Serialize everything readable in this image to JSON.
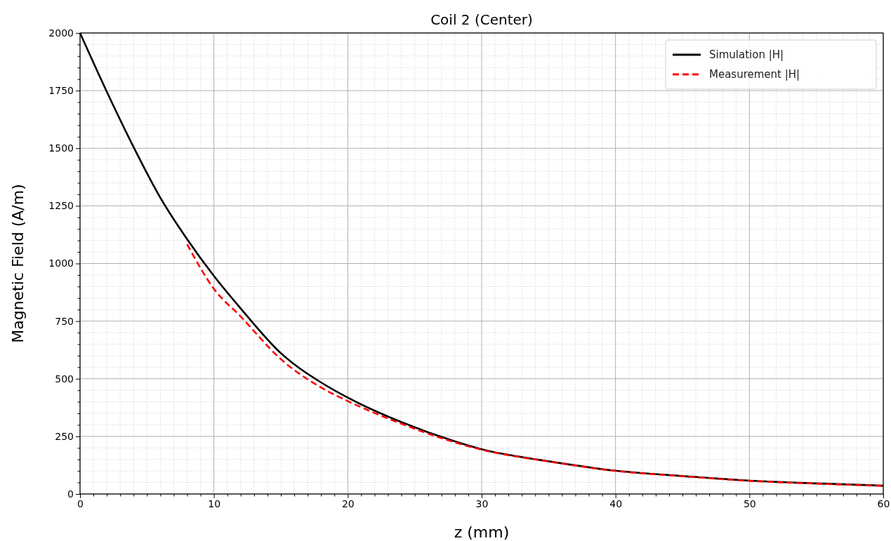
{
  "chart_data": {
    "type": "line",
    "title": "Coil 2 (Center)",
    "xlabel": "z (mm)",
    "ylabel": "Magnetic Field (A/m)",
    "xlim": [
      0,
      60
    ],
    "ylim": [
      0,
      2000
    ],
    "xticks": [
      0,
      {
        "value": 1,
        "label": null
      },
      {
        "value": 2,
        "label": null
      },
      {
        "value": 3,
        "label": null
      },
      {
        "value": 4,
        "label": null
      },
      {
        "value": 5,
        "label": null
      },
      {
        "value": 6,
        "label": null
      },
      {
        "value": 7,
        "label": null
      },
      {
        "value": 8,
        "label": null
      },
      {
        "value": 9,
        "label": null
      },
      10,
      {
        "value": 11,
        "label": null
      },
      {
        "value": 12,
        "label": null
      },
      {
        "value": 13,
        "label": null
      },
      {
        "value": 14,
        "label": null
      },
      {
        "value": 15,
        "label": null
      },
      {
        "value": 16,
        "label": null
      },
      {
        "value": 17,
        "label": null
      },
      {
        "value": 18,
        "label": null
      },
      {
        "value": 19,
        "label": null
      },
      20,
      {
        "value": 21,
        "label": null
      },
      {
        "value": 22,
        "label": null
      },
      {
        "value": 23,
        "label": null
      },
      {
        "value": 24,
        "label": null
      },
      {
        "value": 25,
        "label": null
      },
      {
        "value": 26,
        "label": null
      },
      {
        "value": 27,
        "label": null
      },
      {
        "value": 28,
        "label": null
      },
      {
        "value": 29,
        "label": null
      },
      30,
      {
        "value": 31,
        "label": null
      },
      {
        "value": 32,
        "label": null
      },
      {
        "value": 33,
        "label": null
      },
      {
        "value": 34,
        "label": null
      },
      {
        "value": 35,
        "label": null
      },
      {
        "value": 36,
        "label": null
      },
      {
        "value": 37,
        "label": null
      },
      {
        "value": 38,
        "label": null
      },
      {
        "value": 39,
        "label": null
      },
      40,
      {
        "value": 41,
        "label": null
      },
      {
        "value": 42,
        "label": null
      },
      {
        "value": 43,
        "label": null
      },
      {
        "value": 44,
        "label": null
      },
      {
        "value": 45,
        "label": null
      },
      {
        "value": 46,
        "label": null
      },
      {
        "value": 47,
        "label": null
      },
      {
        "value": 48,
        "label": null
      },
      {
        "value": 49,
        "label": null
      },
      50,
      {
        "value": 51,
        "label": null
      },
      {
        "value": 52,
        "label": null
      },
      {
        "value": 53,
        "label": null
      },
      {
        "value": 54,
        "label": null
      },
      {
        "value": 55,
        "label": null
      },
      {
        "value": 56,
        "label": null
      },
      {
        "value": 57,
        "label": null
      },
      {
        "value": 58,
        "label": null
      },
      {
        "value": 59,
        "label": null
      },
      60
    ],
    "yticks": [
      0,
      {
        "value": 50,
        "label": null
      },
      {
        "value": 100,
        "label": null
      },
      {
        "value": 150,
        "label": null
      },
      {
        "value": 200,
        "label": null
      },
      250,
      {
        "value": 300,
        "label": null
      },
      {
        "value": 350,
        "label": null
      },
      {
        "value": 400,
        "label": null
      },
      {
        "value": 450,
        "label": null
      },
      500,
      {
        "value": 550,
        "label": null
      },
      {
        "value": 600,
        "label": null
      },
      {
        "value": 650,
        "label": null
      },
      {
        "value": 700,
        "label": null
      },
      750,
      {
        "value": 800,
        "label": null
      },
      {
        "value": 850,
        "label": null
      },
      {
        "value": 900,
        "label": null
      },
      {
        "value": 950,
        "label": null
      },
      1000,
      {
        "value": 1050,
        "label": null
      },
      {
        "value": 1100,
        "label": null
      },
      {
        "value": 1150,
        "label": null
      },
      {
        "value": 1200,
        "label": null
      },
      1250,
      {
        "value": 1300,
        "label": null
      },
      {
        "value": 1350,
        "label": null
      },
      {
        "value": 1400,
        "label": null
      },
      {
        "value": 1450,
        "label": null
      },
      1500,
      {
        "value": 1550,
        "label": null
      },
      {
        "value": 1600,
        "label": null
      },
      {
        "value": 1650,
        "label": null
      },
      {
        "value": 1700,
        "label": null
      },
      1750,
      {
        "value": 1800,
        "label": null
      },
      {
        "value": 1850,
        "label": null
      },
      {
        "value": 1900,
        "label": null
      },
      {
        "value": 1950,
        "label": null
      },
      2000
    ],
    "grid": true,
    "legend": "top right",
    "marker": "none",
    "series": [
      {
        "name": "Simulation |H|",
        "color": "#000000",
        "line_style": "solid",
        "x": [
          0,
          2,
          4,
          6,
          8,
          10,
          12,
          15,
          18,
          20,
          24,
          28,
          30,
          35,
          40,
          45,
          50,
          55,
          60
        ],
        "values": [
          2000,
          1745,
          1505,
          1285,
          1105,
          946,
          805,
          611,
          484,
          418,
          312,
          228,
          194,
          142,
          101,
          78,
          58,
          46,
          36
        ]
      },
      {
        "name": "Measurement |H|",
        "color": "#ff0000",
        "line_style": "dashed",
        "x": [
          8,
          10,
          12,
          15,
          18,
          20,
          24,
          28,
          30,
          35,
          40,
          45,
          50,
          55,
          60
        ],
        "values": [
          1083,
          890,
          770,
          585,
          462,
          403,
          305,
          224,
          192,
          141,
          100,
          77,
          57,
          45,
          35
        ]
      }
    ]
  }
}
